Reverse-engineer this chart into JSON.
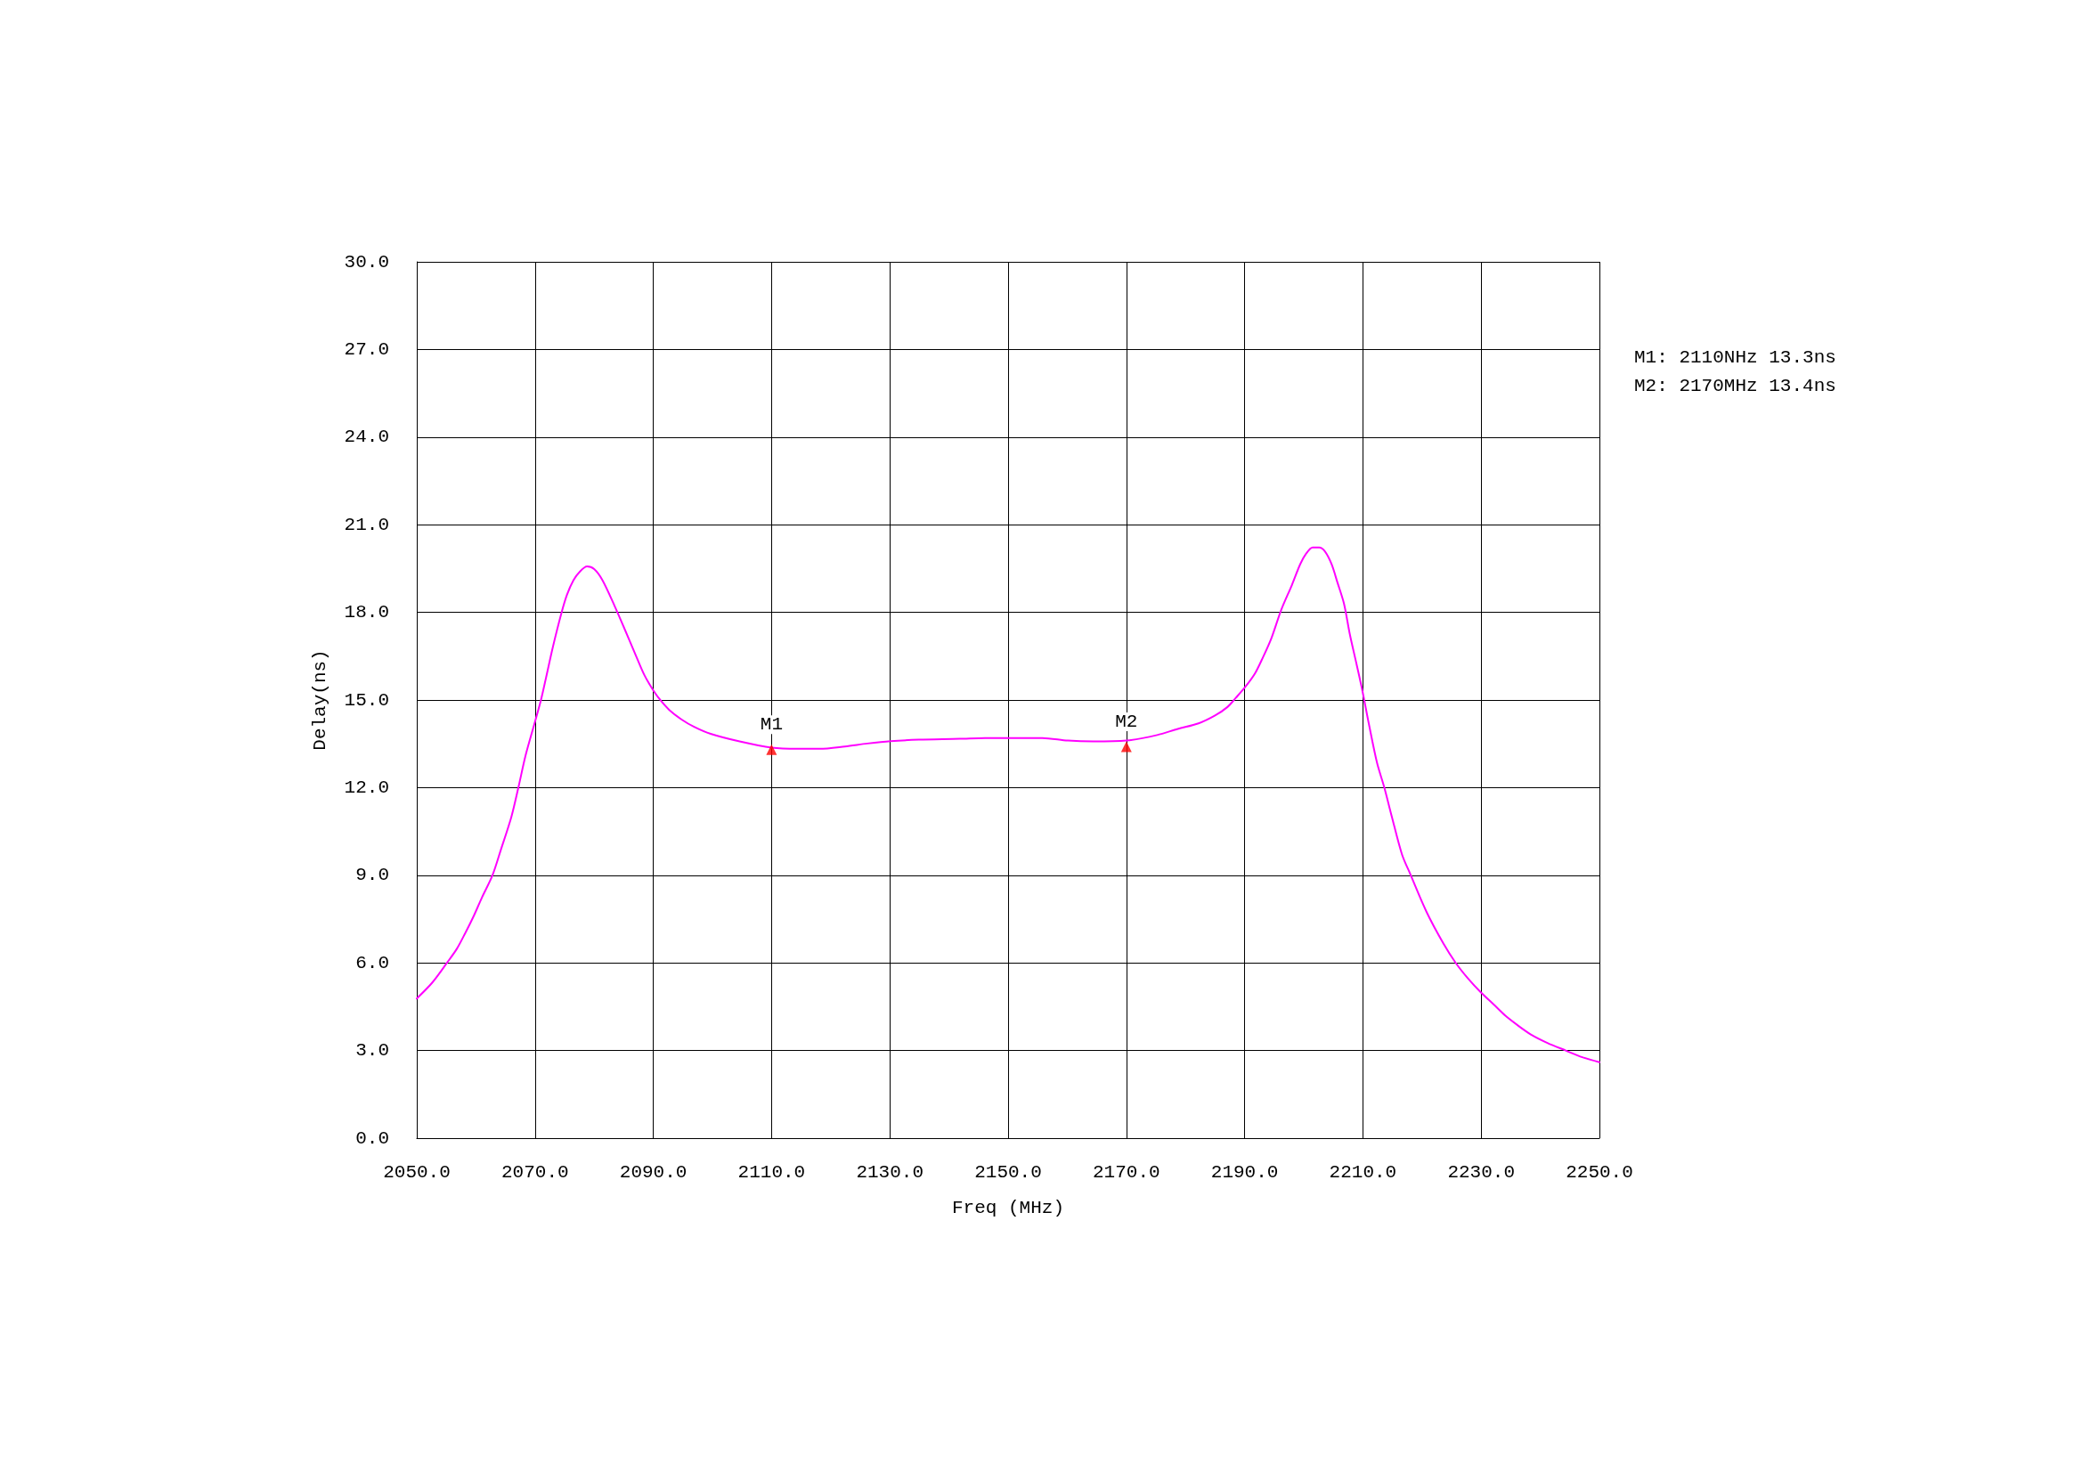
{
  "chart_data": {
    "type": "line",
    "xlabel": "Freq (MHz)",
    "ylabel": "Delay(ns)",
    "xlim": [
      2050,
      2250
    ],
    "ylim": [
      0,
      30
    ],
    "xticks": [
      {
        "value": 2050,
        "label": "2050.0"
      },
      {
        "value": 2070,
        "label": "2070.0"
      },
      {
        "value": 2090,
        "label": "2090.0"
      },
      {
        "value": 2110,
        "label": "2110.0"
      },
      {
        "value": 2130,
        "label": "2130.0"
      },
      {
        "value": 2150,
        "label": "2150.0"
      },
      {
        "value": 2170,
        "label": "2170.0"
      },
      {
        "value": 2190,
        "label": "2190.0"
      },
      {
        "value": 2210,
        "label": "2210.0"
      },
      {
        "value": 2230,
        "label": "2230.0"
      },
      {
        "value": 2250,
        "label": "2250.0"
      }
    ],
    "yticks": [
      {
        "value": 0,
        "label": "0.0"
      },
      {
        "value": 3,
        "label": "3.0"
      },
      {
        "value": 6,
        "label": "6.0"
      },
      {
        "value": 9,
        "label": "9.0"
      },
      {
        "value": 12,
        "label": "12.0"
      },
      {
        "value": 15,
        "label": "15.0"
      },
      {
        "value": 18,
        "label": "18.0"
      },
      {
        "value": 21,
        "label": "21.0"
      },
      {
        "value": 24,
        "label": "24.0"
      },
      {
        "value": 27,
        "label": "27.0"
      },
      {
        "value": 30,
        "label": "30.0"
      }
    ],
    "grid": true,
    "series": [
      {
        "type": "line",
        "color": "#ff00ff",
        "marker": "none",
        "line_style": "solid",
        "x": [
          2050.0,
          2052.6,
          2055.1,
          2056.8,
          2058.2,
          2059.6,
          2061.0,
          2062.8,
          2064.2,
          2066.0,
          2067.2,
          2068.4,
          2070.0,
          2071.0,
          2071.9,
          2073.0,
          2074.5,
          2075.4,
          2076.5,
          2077.6,
          2078.8,
          2080.0,
          2081.4,
          2083.5,
          2085.0,
          2087.1,
          2088.5,
          2090.0,
          2091.3,
          2092.7,
          2094.8,
          2096.9,
          2099.7,
          2104.6,
          2110.0,
          2114.4,
          2118.1,
          2122.4,
          2126.2,
          2130.1,
          2134.9,
          2141.8,
          2146.1,
          2155.8,
          2160.1,
          2164.4,
          2170.0,
          2175.2,
          2178.7,
          2182.2,
          2185.0,
          2187.1,
          2188.5,
          2190.0,
          2191.7,
          2193.1,
          2194.5,
          2196.2,
          2198.0,
          2199.4,
          2200.4,
          2201.5,
          2202.6,
          2203.6,
          2204.7,
          2205.7,
          2206.8,
          2207.8,
          2208.9,
          2209.9,
          2211.0,
          2212.4,
          2213.6,
          2214.9,
          2216.6,
          2218.1,
          2220.8,
          2223.6,
          2225.7,
          2227.8,
          2229.9,
          2232.1,
          2234.1,
          2236.2,
          2238.4,
          2241.2,
          2244.3,
          2247.1,
          2250.0
        ],
        "values": [
          4.78,
          5.32,
          6.0,
          6.49,
          7.02,
          7.59,
          8.23,
          9.0,
          9.86,
          11.0,
          12.02,
          13.1,
          14.26,
          15.0,
          15.8,
          16.8,
          18.0,
          18.6,
          19.1,
          19.4,
          19.57,
          19.48,
          19.1,
          18.2,
          17.5,
          16.5,
          15.85,
          15.33,
          14.97,
          14.66,
          14.33,
          14.08,
          13.84,
          13.58,
          13.37,
          13.33,
          13.33,
          13.41,
          13.51,
          13.59,
          13.64,
          13.67,
          13.7,
          13.7,
          13.61,
          13.58,
          13.61,
          13.8,
          14.01,
          14.2,
          14.47,
          14.76,
          15.07,
          15.42,
          15.89,
          16.46,
          17.1,
          18.09,
          18.94,
          19.65,
          20.01,
          20.22,
          20.22,
          20.08,
          19.65,
          19.02,
          18.3,
          17.24,
          16.25,
          15.33,
          14.19,
          12.84,
          12.02,
          11.0,
          9.72,
          9.0,
          7.73,
          6.67,
          6.0,
          5.46,
          5.0,
          4.58,
          4.19,
          3.86,
          3.55,
          3.26,
          3.0,
          2.77,
          2.6
        ]
      },
      {
        "type": "scatter",
        "color": "#ff0000",
        "marker": "triangle",
        "x": [
          2110,
          2170
        ],
        "values": [
          13.3,
          13.4
        ]
      }
    ],
    "annotations": [
      {
        "text": "M1",
        "x": 2110,
        "y": 13.3
      },
      {
        "text": "M2",
        "x": 2170,
        "y": 13.4
      },
      "M1: 2110NHz 13.3ns",
      "M2: 2170MHz 13.4ns"
    ]
  }
}
